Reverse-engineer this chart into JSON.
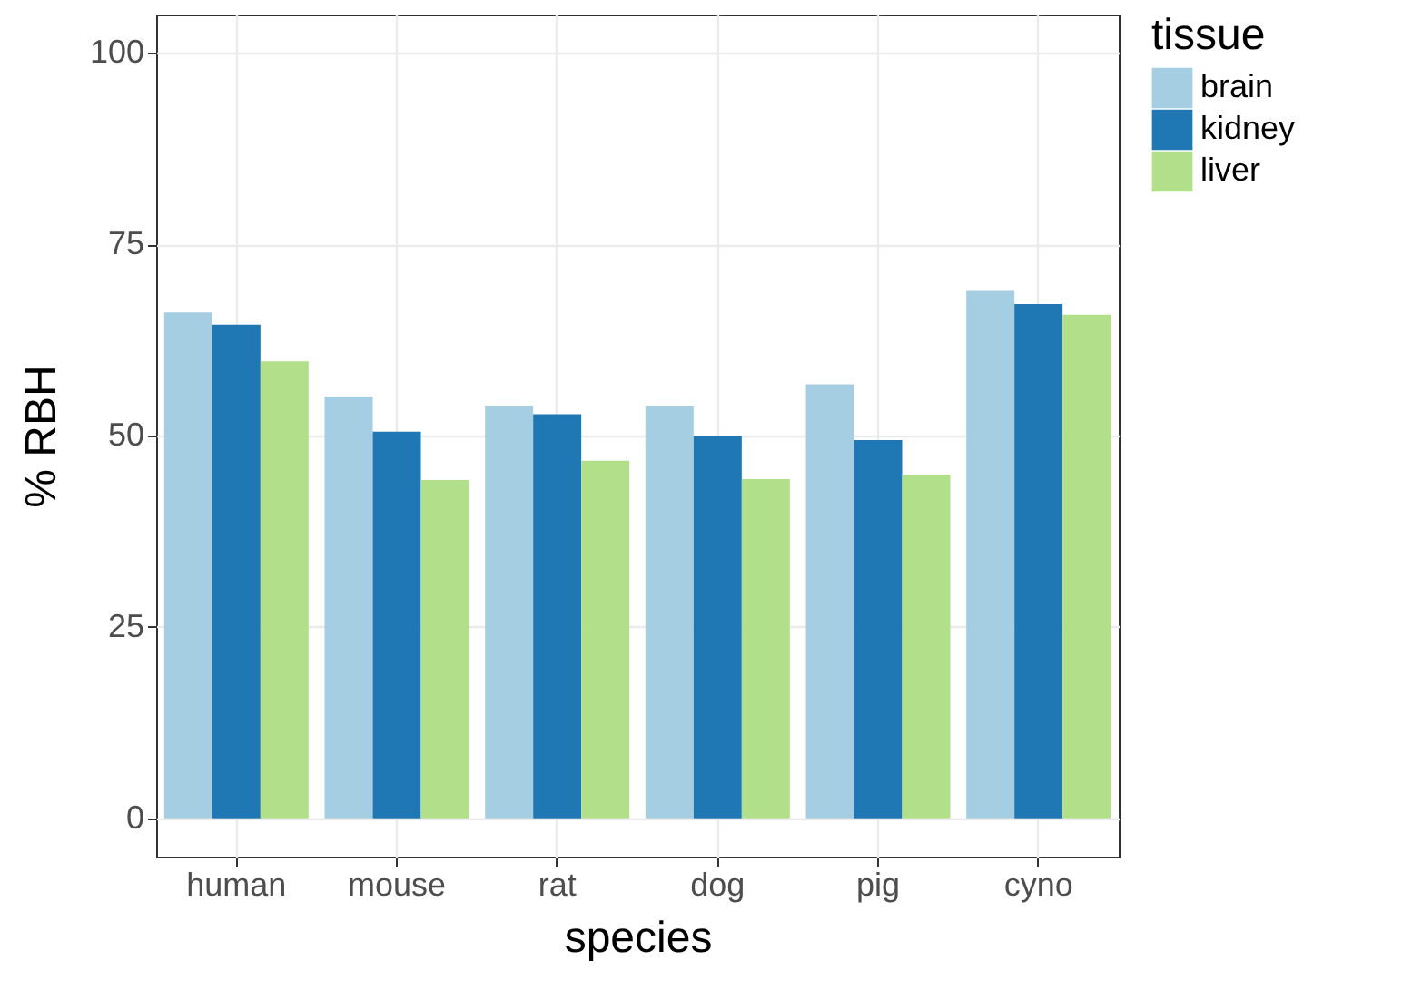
{
  "chart_data": {
    "type": "bar",
    "xlabel": "species",
    "ylabel": "% RBH",
    "legend_title": "tissue",
    "categories": [
      "human",
      "mouse",
      "rat",
      "dog",
      "pig",
      "cyno"
    ],
    "series": [
      {
        "name": "brain",
        "color": "#a6cee3",
        "values": [
          66.1,
          55.1,
          53.9,
          53.9,
          56.7,
          68.9
        ]
      },
      {
        "name": "kidney",
        "color": "#1f78b4",
        "values": [
          64.5,
          50.5,
          52.8,
          50.0,
          49.4,
          67.2
        ]
      },
      {
        "name": "liver",
        "color": "#b2df8a",
        "values": [
          59.7,
          44.2,
          46.7,
          44.3,
          44.9,
          65.8
        ]
      }
    ],
    "ylim": [
      -5,
      105
    ],
    "yticks": [
      0,
      25,
      50,
      75,
      100
    ],
    "grid": true,
    "legend": "right"
  }
}
